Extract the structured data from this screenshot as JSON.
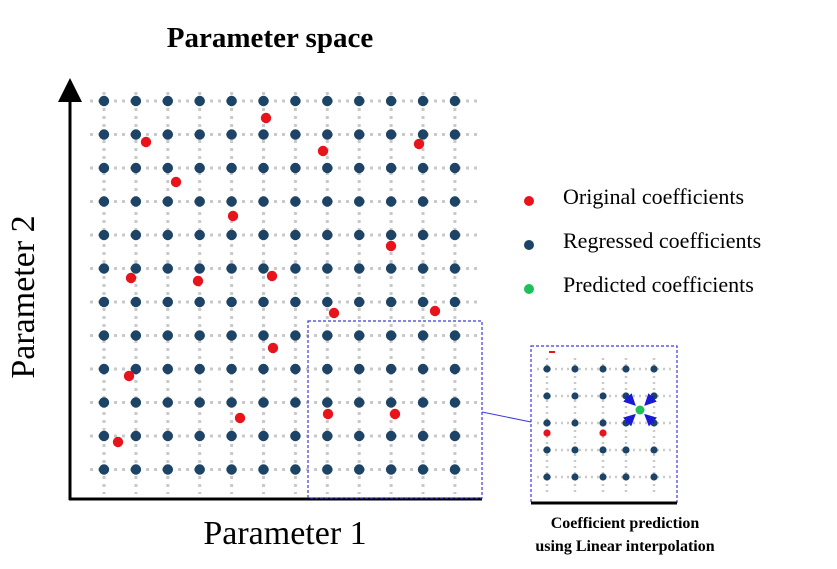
{
  "diagram": {
    "title": "Parameter space",
    "x_axis_label": "Parameter 1",
    "y_axis_label": "Parameter 2",
    "legend": [
      {
        "label": "Original coefficients",
        "color": "#e8141c"
      },
      {
        "label": "Regressed coefficients",
        "color": "#1d4466"
      },
      {
        "label": "Predicted coefficients",
        "color": "#1fbf5a"
      }
    ],
    "colors": {
      "grid_dot": "#c9c9c9",
      "region_box": "#3a3adf",
      "arrow": "#1a1ad6"
    },
    "inset_caption_line1": "Coefficient prediction",
    "inset_caption_line2": "using Linear interpolation"
  }
}
